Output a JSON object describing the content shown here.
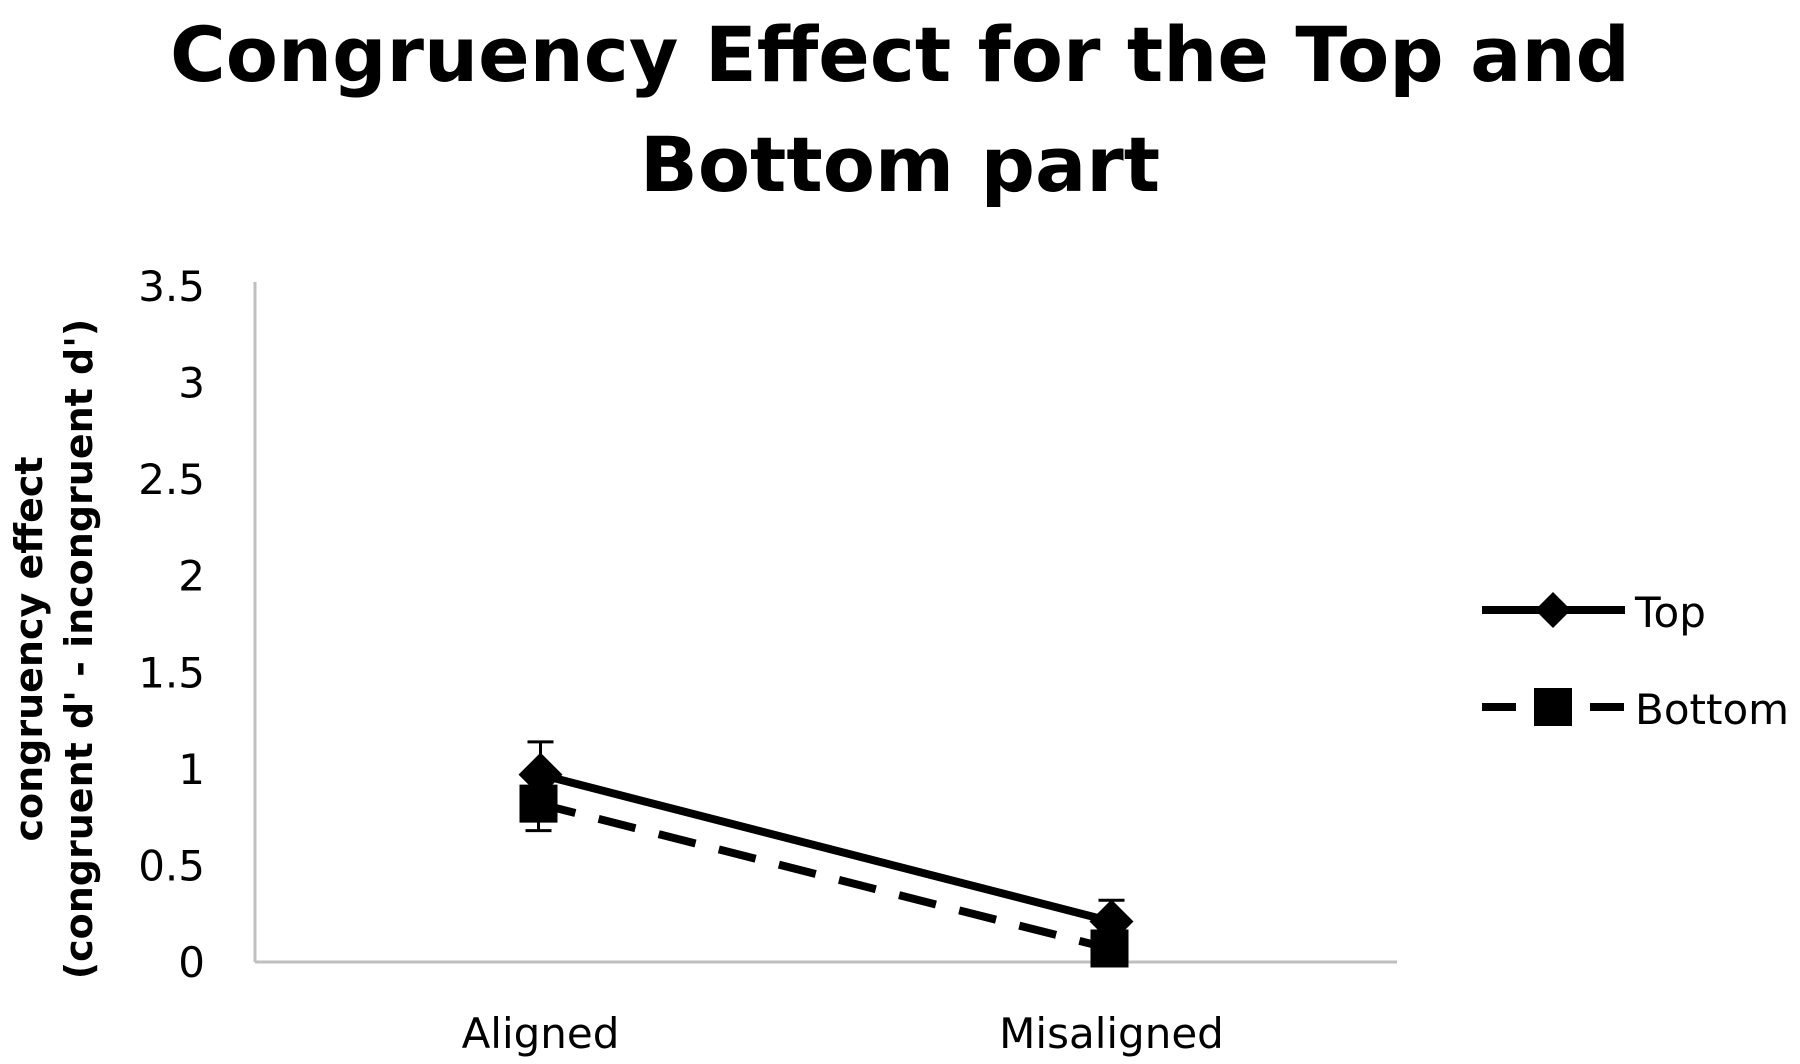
{
  "chart_data": {
    "type": "line",
    "title": "Congruency Effect for the Top and Bottom part",
    "title_lines": [
      "Congruency Effect for the Top and",
      "Bottom part"
    ],
    "categories": [
      "Aligned",
      "Misaligned"
    ],
    "ylabel_lines": [
      "congruency effect",
      "(congruent d' - incongruent d')"
    ],
    "xlabel": "",
    "ylim": [
      0,
      3.5
    ],
    "yticks": [
      "0",
      "0.5",
      "1",
      "1.5",
      "2",
      "2.5",
      "3",
      "3.5"
    ],
    "grid": false,
    "legend_position": "right",
    "series": [
      {
        "name": "Top",
        "values": [
          0.97,
          0.21
        ],
        "error": [
          0.17,
          0.11
        ],
        "marker": "diamond",
        "line_style": "solid",
        "color": "#000000"
      },
      {
        "name": "Bottom",
        "values": [
          0.82,
          0.07
        ],
        "error": [
          0.14,
          0.06
        ],
        "marker": "square",
        "line_style": "dashed",
        "color": "#000000"
      }
    ]
  }
}
